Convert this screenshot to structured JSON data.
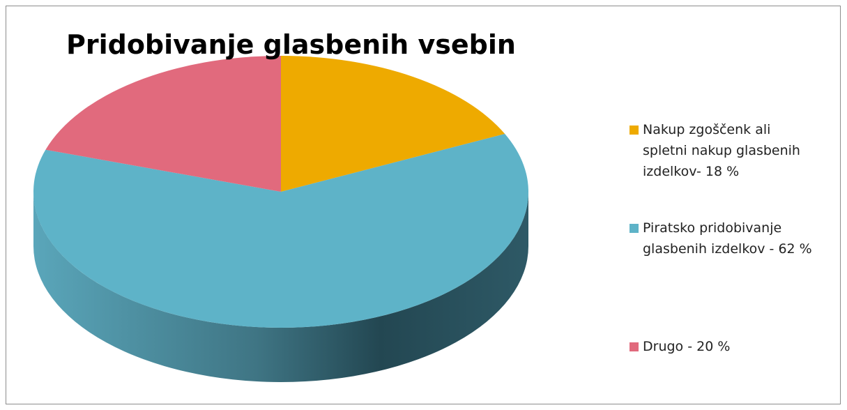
{
  "chart_data": {
    "type": "pie",
    "title": "Pridobivanje glasbenih vsebin",
    "categories": [
      "Nakup zgoščenk ali spletni nakup glasbenih izdelkov- 18 %",
      "Piratsko pridobivanje glasbenih izdelkov - 62 %",
      "Drugo - 20 %"
    ],
    "values": [
      18,
      62,
      20
    ],
    "colors": [
      "#eeaa00",
      "#5eb3c8",
      "#e16a7d"
    ],
    "legend": "right"
  }
}
